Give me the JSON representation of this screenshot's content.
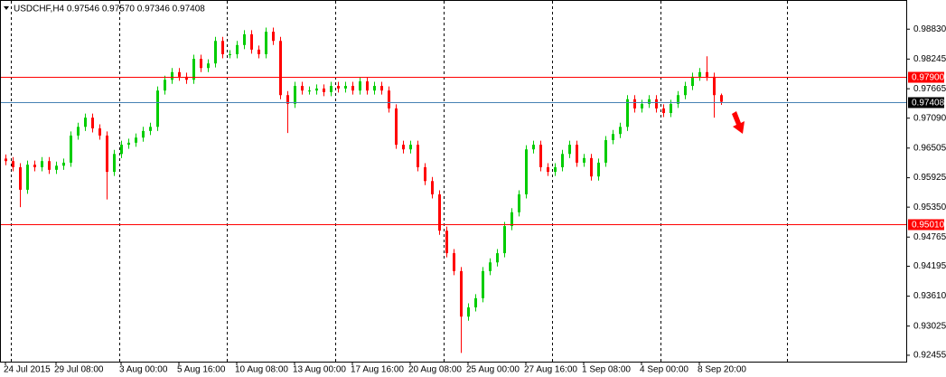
{
  "chart_data": {
    "type": "candlestick",
    "title": "USDCHF,H4 0.97546 0.97570 0.97346 0.97408",
    "up_color": "#00cc00",
    "down_color": "#ff0000",
    "ylim": [
      0.9233,
      0.994
    ],
    "yticks": [
      {
        "value": 0.9883,
        "label": "0.98830"
      },
      {
        "value": 0.98245,
        "label": "0.98245"
      },
      {
        "value": 0.97665,
        "label": "0.97665"
      },
      {
        "value": 0.9709,
        "label": "0.97090"
      },
      {
        "value": 0.96505,
        "label": "0.96505"
      },
      {
        "value": 0.95925,
        "label": "0.95925"
      },
      {
        "value": 0.9535,
        "label": "0.95350"
      },
      {
        "value": 0.94765,
        "label": "0.94765"
      },
      {
        "value": 0.94195,
        "label": "0.94195"
      },
      {
        "value": 0.9361,
        "label": "0.93610"
      },
      {
        "value": 0.93025,
        "label": "0.93025"
      },
      {
        "value": 0.92455,
        "label": "0.92455"
      }
    ],
    "hlines": [
      {
        "value": 0.979,
        "label": "0.97900",
        "color": "#ff0000"
      },
      {
        "value": 0.9501,
        "label": "0.95010",
        "color": "#ff0000"
      },
      {
        "value": 0.97408,
        "label": "0.97408",
        "color": "#4682b4"
      }
    ],
    "categories": [
      "24 Jul 2015",
      null,
      null,
      null,
      null,
      null,
      null,
      "29 Jul 08:00",
      null,
      null,
      null,
      null,
      null,
      null,
      null,
      null,
      "3 Aug 00:00",
      null,
      null,
      null,
      null,
      null,
      null,
      null,
      "5 Aug 16:00",
      null,
      null,
      null,
      null,
      null,
      null,
      null,
      "10 Aug 08:00",
      null,
      null,
      null,
      null,
      null,
      null,
      null,
      "13 Aug 00:00",
      null,
      null,
      null,
      null,
      null,
      null,
      null,
      "17 Aug 16:00",
      null,
      null,
      null,
      null,
      null,
      null,
      null,
      "20 Aug 08:00",
      null,
      null,
      null,
      null,
      null,
      null,
      null,
      "25 Aug 00:00",
      null,
      null,
      null,
      null,
      null,
      null,
      null,
      "27 Aug 16:00",
      null,
      null,
      null,
      null,
      null,
      null,
      null,
      "1 Sep 08:00",
      null,
      null,
      null,
      null,
      null,
      null,
      null,
      "4 Sep 00:00",
      null,
      null,
      null,
      null,
      null,
      null,
      null,
      "8 Sep 20:00",
      null,
      null,
      null
    ],
    "open": [
      0.963,
      0.9625,
      0.9613,
      0.9569,
      0.9618,
      0.9613,
      0.9625,
      0.9608,
      0.9616,
      0.9622,
      0.9675,
      0.9692,
      0.971,
      0.9689,
      0.9675,
      0.9604,
      0.9639,
      0.9657,
      0.9661,
      0.9671,
      0.9684,
      0.9692,
      0.9763,
      0.9784,
      0.9799,
      0.979,
      0.9784,
      0.9825,
      0.9807,
      0.9816,
      0.986,
      0.9834,
      0.9834,
      0.9852,
      0.9873,
      0.9843,
      0.9834,
      0.9878,
      0.986,
      0.9754,
      0.9737,
      0.9772,
      0.9763,
      0.9763,
      0.9767,
      0.976,
      0.9772,
      0.9767,
      0.9772,
      0.9763,
      0.9781,
      0.9763,
      0.9772,
      0.9763,
      0.9728,
      0.9657,
      0.9648,
      0.9657,
      0.9613,
      0.9586,
      0.956,
      0.9489,
      0.9445,
      0.941,
      0.9321,
      0.9339,
      0.9357,
      0.941,
      0.9427,
      0.9445,
      0.9498,
      0.9525,
      0.956,
      0.9648,
      0.9657,
      0.9613,
      0.9604,
      0.9613,
      0.9639,
      0.9657,
      0.9622,
      0.9631,
      0.9595,
      0.9622,
      0.9666,
      0.9678,
      0.9692,
      0.9746,
      0.9728,
      0.9737,
      0.9746,
      0.9728,
      0.9719,
      0.9737,
      0.9754,
      0.9772,
      0.979,
      0.9799,
      0.979,
      0.9754
    ],
    "high": [
      0.9638,
      0.9633,
      0.9621,
      0.9626,
      0.9626,
      0.9633,
      0.9633,
      0.9624,
      0.963,
      0.9683,
      0.97,
      0.9718,
      0.9718,
      0.9697,
      0.9683,
      0.9647,
      0.9665,
      0.9669,
      0.9679,
      0.9692,
      0.97,
      0.9771,
      0.9792,
      0.9807,
      0.9807,
      0.9798,
      0.9833,
      0.9833,
      0.9824,
      0.9868,
      0.9868,
      0.9842,
      0.986,
      0.9881,
      0.9881,
      0.9851,
      0.9886,
      0.9886,
      0.9868,
      0.9762,
      0.978,
      0.978,
      0.9771,
      0.9775,
      0.9775,
      0.978,
      0.978,
      0.978,
      0.978,
      0.9789,
      0.9789,
      0.978,
      0.978,
      0.9771,
      0.9736,
      0.9665,
      0.9665,
      0.9665,
      0.9621,
      0.9594,
      0.9568,
      0.9497,
      0.9453,
      0.9418,
      0.9347,
      0.9365,
      0.9418,
      0.9435,
      0.9453,
      0.9506,
      0.9533,
      0.9568,
      0.9656,
      0.9665,
      0.9665,
      0.9621,
      0.9621,
      0.9647,
      0.9665,
      0.9665,
      0.9639,
      0.9639,
      0.963,
      0.9674,
      0.9686,
      0.97,
      0.9754,
      0.9754,
      0.9745,
      0.9754,
      0.9754,
      0.9736,
      0.9745,
      0.9762,
      0.978,
      0.9798,
      0.9807,
      0.983,
      0.9798,
      0.9757
    ],
    "low": [
      0.9617,
      0.9605,
      0.9535,
      0.9561,
      0.9605,
      0.9605,
      0.96,
      0.96,
      0.9608,
      0.9614,
      0.9667,
      0.9684,
      0.9681,
      0.9667,
      0.955,
      0.9596,
      0.9631,
      0.9649,
      0.9653,
      0.9663,
      0.9676,
      0.9684,
      0.9755,
      0.9776,
      0.9782,
      0.9776,
      0.9776,
      0.9799,
      0.9799,
      0.9808,
      0.9826,
      0.9826,
      0.9826,
      0.9844,
      0.9835,
      0.9826,
      0.9826,
      0.9852,
      0.9746,
      0.968,
      0.9729,
      0.9755,
      0.9755,
      0.9755,
      0.9752,
      0.9752,
      0.9759,
      0.9759,
      0.9755,
      0.9755,
      0.9755,
      0.9755,
      0.9755,
      0.972,
      0.9649,
      0.964,
      0.964,
      0.9605,
      0.9578,
      0.9552,
      0.9481,
      0.9437,
      0.9402,
      0.925,
      0.9313,
      0.9331,
      0.9349,
      0.9402,
      0.9419,
      0.9437,
      0.949,
      0.9517,
      0.9552,
      0.964,
      0.9605,
      0.9596,
      0.9596,
      0.9605,
      0.9631,
      0.9614,
      0.9614,
      0.9587,
      0.9587,
      0.9614,
      0.9658,
      0.967,
      0.9684,
      0.972,
      0.972,
      0.9729,
      0.972,
      0.9711,
      0.9711,
      0.9729,
      0.9746,
      0.9764,
      0.9782,
      0.9782,
      0.971,
      0.9735
    ],
    "close": [
      0.9625,
      0.9613,
      0.9569,
      0.9618,
      0.9613,
      0.9625,
      0.9608,
      0.9616,
      0.9622,
      0.9675,
      0.9692,
      0.971,
      0.9689,
      0.9675,
      0.9604,
      0.9639,
      0.9657,
      0.9661,
      0.9671,
      0.9684,
      0.9692,
      0.9763,
      0.9784,
      0.9799,
      0.979,
      0.9784,
      0.9825,
      0.9807,
      0.9816,
      0.986,
      0.9834,
      0.9834,
      0.9852,
      0.9873,
      0.9843,
      0.9834,
      0.9878,
      0.986,
      0.9754,
      0.9737,
      0.9772,
      0.9763,
      0.9763,
      0.9767,
      0.976,
      0.9772,
      0.9767,
      0.9772,
      0.9763,
      0.9781,
      0.9763,
      0.9772,
      0.9763,
      0.9728,
      0.9657,
      0.9648,
      0.9657,
      0.9613,
      0.9586,
      0.956,
      0.9489,
      0.9445,
      0.941,
      0.9321,
      0.9339,
      0.9357,
      0.941,
      0.9427,
      0.9445,
      0.9498,
      0.9525,
      0.956,
      0.9648,
      0.9657,
      0.9613,
      0.9604,
      0.9613,
      0.9639,
      0.9657,
      0.9622,
      0.9631,
      0.9595,
      0.9622,
      0.9666,
      0.9678,
      0.9692,
      0.9746,
      0.9728,
      0.9737,
      0.9746,
      0.9728,
      0.9719,
      0.9737,
      0.9754,
      0.9772,
      0.979,
      0.9799,
      0.979,
      0.9754,
      0.9741
    ]
  }
}
